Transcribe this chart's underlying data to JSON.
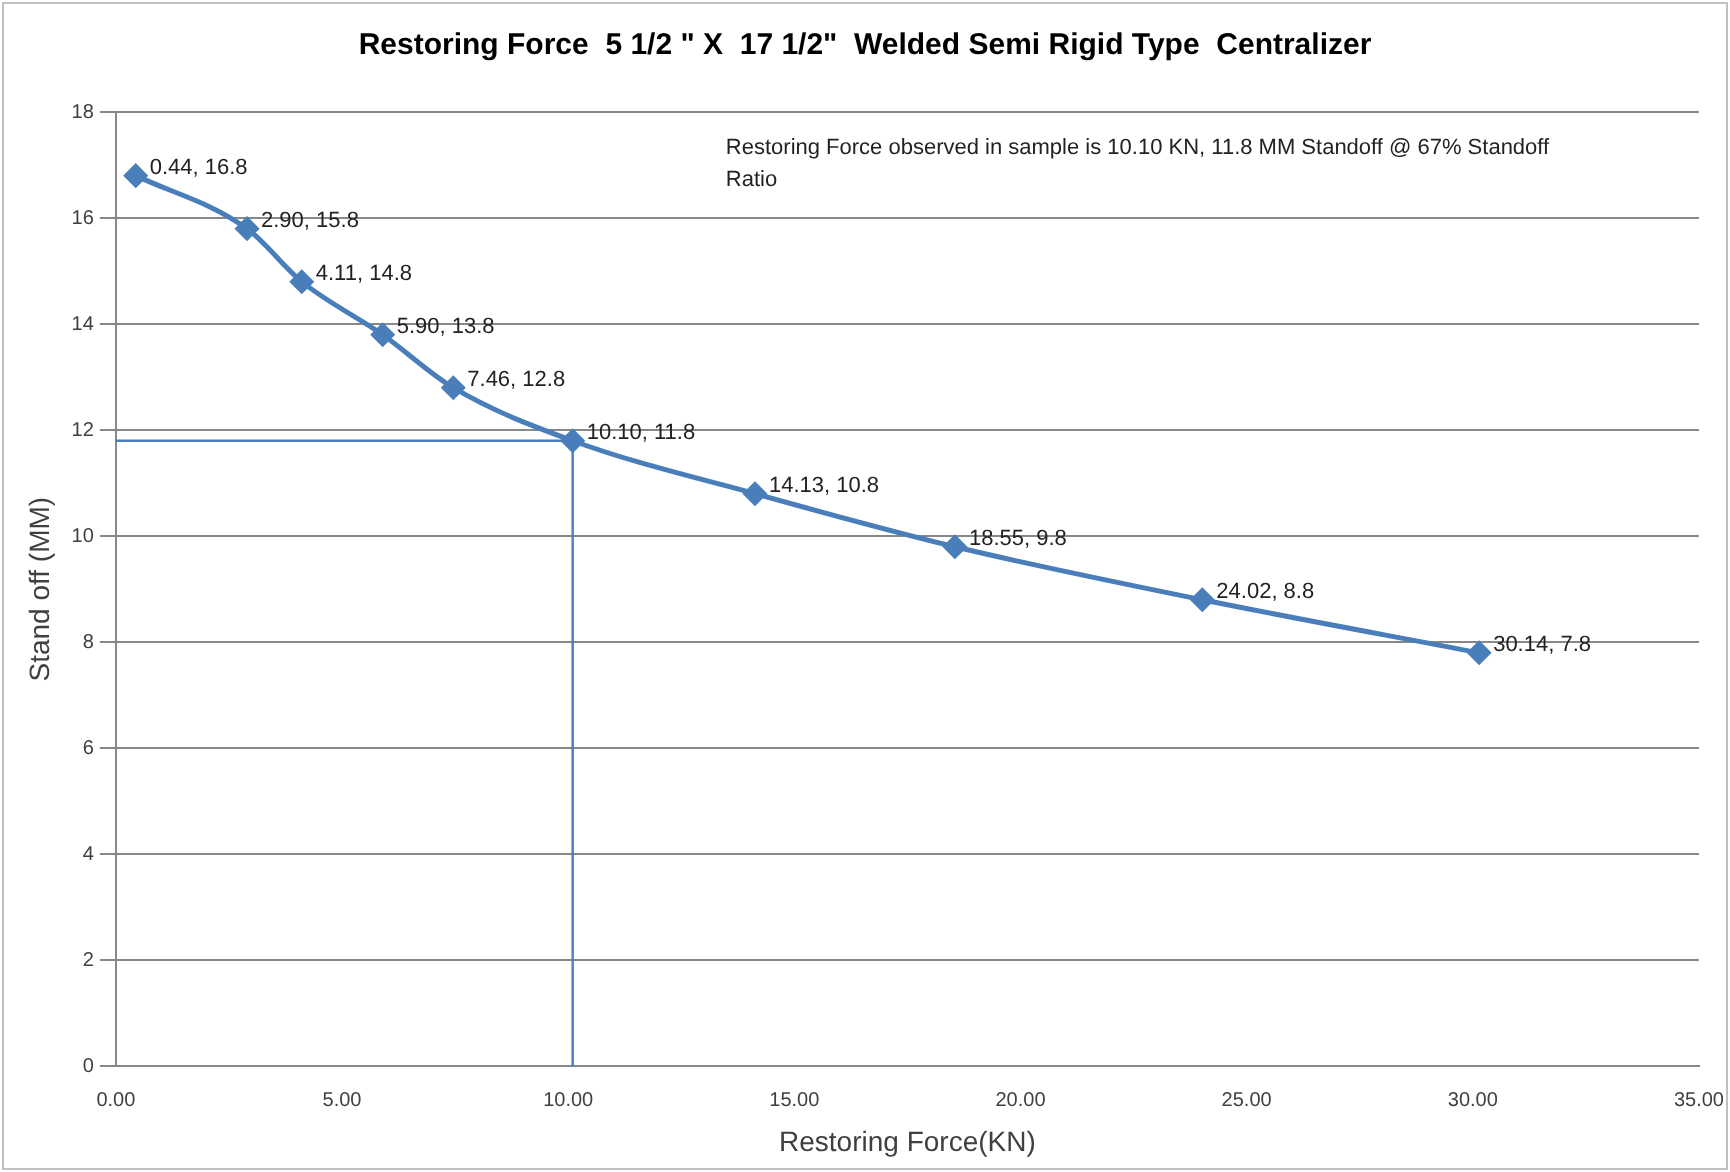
{
  "chart_data": {
    "type": "line",
    "title": "Restoring Force  5 1/2 \" X  17 1/2\"  Welded Semi Rigid Type  Centralizer",
    "xlabel": "Restoring Force(KN)",
    "ylabel": "Stand off (MM)",
    "x": [
      0.44,
      2.9,
      4.11,
      5.9,
      7.46,
      10.1,
      14.13,
      18.55,
      24.02,
      30.14
    ],
    "series": [
      {
        "color": "#4a7ebb",
        "values": [
          16.8,
          15.8,
          14.8,
          13.8,
          12.8,
          11.8,
          10.8,
          9.8,
          8.8,
          7.8
        ],
        "value_labels": [
          "0.44, 16.8",
          "2.90, 15.8",
          "4.11, 14.8",
          "5.90, 13.8",
          "7.46, 12.8",
          "10.10, 11.8",
          "14.13, 10.8",
          "18.55, 9.8",
          "24.02, 8.8",
          "30.14, 7.8"
        ]
      }
    ],
    "xlim": [
      0,
      35
    ],
    "xticks": [
      {
        "value": 0,
        "label": "0.00"
      },
      {
        "value": 5,
        "label": "5.00"
      },
      {
        "value": 10,
        "label": "10.00"
      },
      {
        "value": 15,
        "label": "15.00"
      },
      {
        "value": 20,
        "label": "20.00"
      },
      {
        "value": 25,
        "label": "25.00"
      },
      {
        "value": 30,
        "label": "30.00"
      },
      {
        "value": 35,
        "label": "35.00"
      }
    ],
    "ylim": [
      0,
      18
    ],
    "yticks": [
      0,
      2,
      4,
      6,
      8,
      10,
      12,
      14,
      16,
      18
    ],
    "ref_lines": [
      {
        "axis": "x",
        "value": 10.1,
        "color": "#4a7ebb"
      },
      {
        "axis": "y",
        "value": 11.8,
        "color": "#4a7ebb"
      }
    ],
    "annotations": [
      "Restoring Force observed in sample is 10.10 KN, 11.8 MM Standoff @ 67% Standoff Ratio"
    ],
    "grid": "y",
    "legend": false,
    "marker": "diamond",
    "line_style": "solid"
  }
}
